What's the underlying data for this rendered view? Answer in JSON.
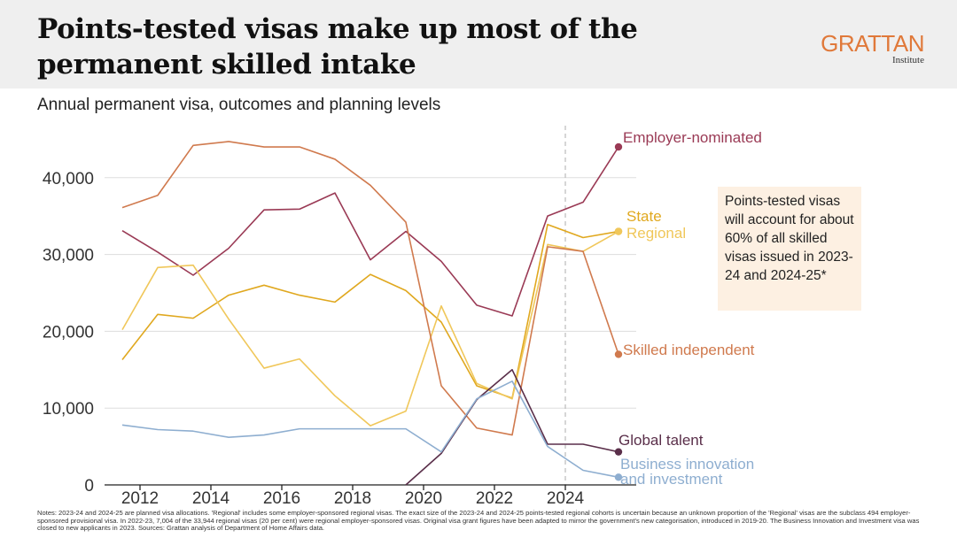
{
  "header": {
    "title": "Points-tested visas make up most of the permanent skilled intake",
    "logo_brand": "GRATTAN",
    "logo_sub": "Institute"
  },
  "subtitle": "Annual permanent visa, outcomes and planning levels",
  "callout": "Points-tested visas will account for about 60% of all skilled visas issued in 2023-24 and 2024-25*",
  "notes": "Notes: 2023-24 and 2024-25 are planned visa allocations. 'Regional' includes some employer-sponsored regional visas. The exact size of the 2023-24 and 2024-25 points-tested regional cohorts is uncertain because an unknown proportion of the 'Regional' visas are the subclass 494 employer-sponsored provisional visa. In 2022-23, 7,004 of the 33,944 regional visas (20 per cent) were regional employer-sponsored visas. Original visa grant figures have been adapted to mirror the government's new categorisation, introduced in 2019-20. The Business Innovation and Investment visa was closed to new applicants in 2023. Sources: Grattan analysis of Department of Home Affairs data.",
  "chart_data": {
    "type": "line",
    "x": [
      2011.5,
      2012.5,
      2013.5,
      2014.5,
      2015.5,
      2016.5,
      2017.5,
      2018.5,
      2019.5,
      2020.5,
      2021.5,
      2022.5,
      2023.5,
      2024.5,
      2025.5
    ],
    "xticks": [
      2012,
      2014,
      2016,
      2018,
      2020,
      2022,
      2024
    ],
    "xtick_labels": [
      "2012",
      "2014",
      "2016",
      "2018",
      "2020",
      "2022",
      "2024"
    ],
    "yticks": [
      0,
      10000,
      20000,
      30000,
      40000
    ],
    "ytick_labels": [
      "0",
      "10,000",
      "20,000",
      "30,000",
      "40,000"
    ],
    "xlim": [
      2011,
      2026
    ],
    "ylim": [
      0,
      47000
    ],
    "planned_divider_x": 2024,
    "grid": "horizontal",
    "series": [
      {
        "name": "Employer-nominated",
        "label_lines": [
          "Employer-nominated"
        ],
        "color": "#9a3a55",
        "values": [
          33100,
          30300,
          27300,
          30800,
          35800,
          35900,
          38000,
          29300,
          33000,
          29100,
          23400,
          22000,
          35000,
          36800,
          44000
        ]
      },
      {
        "name": "State",
        "label_lines": [
          "State"
        ],
        "color": "#e0a81f",
        "values": [
          16300,
          22200,
          21700,
          24700,
          26000,
          24700,
          23800,
          27400,
          25300,
          21200,
          12900,
          11300,
          33900,
          32200,
          33000
        ]
      },
      {
        "name": "Regional",
        "label_lines": [
          "Regional"
        ],
        "color": "#f0c75a",
        "values": [
          20200,
          28300,
          28600,
          21600,
          15200,
          16400,
          11600,
          7700,
          9600,
          23300,
          13200,
          11200,
          31300,
          30400,
          33000
        ]
      },
      {
        "name": "Skilled independent",
        "label_lines": [
          "Skilled independent"
        ],
        "color": "#d07a4e",
        "values": [
          36100,
          37700,
          44200,
          44700,
          44000,
          44000,
          42400,
          39000,
          34200,
          12900,
          7400,
          6500,
          31000,
          30400,
          17000
        ]
      },
      {
        "name": "Global talent",
        "label_lines": [
          "Global talent"
        ],
        "color": "#5a2f4a",
        "values": [
          null,
          null,
          null,
          null,
          null,
          null,
          null,
          null,
          0,
          4100,
          11100,
          15000,
          5300,
          5300,
          4300
        ]
      },
      {
        "name": "Business innovation and investment",
        "label_lines": [
          "Business innovation",
          "and investment"
        ],
        "color": "#8eaed0",
        "values": [
          7800,
          7200,
          7000,
          6200,
          6500,
          7300,
          7300,
          7300,
          7300,
          4300,
          11200,
          13500,
          5000,
          1900,
          1000
        ]
      }
    ]
  }
}
